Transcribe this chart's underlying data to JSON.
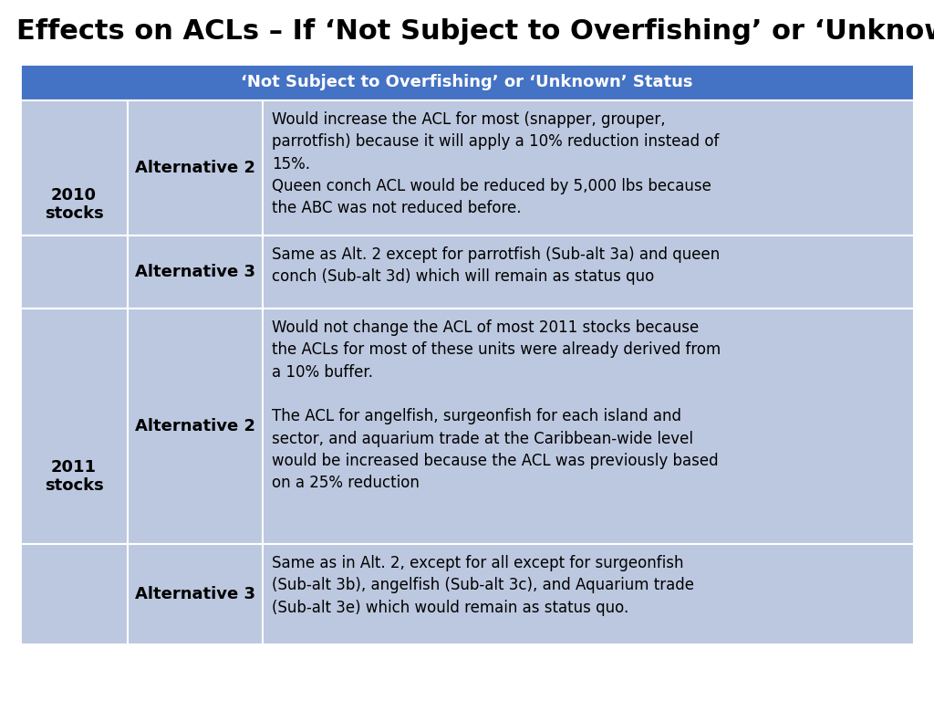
{
  "title": "Effects on ACLs – If ‘Not Subject to Overfishing’ or ‘Unknown’",
  "header": "‘Not Subject to Overfishing’ or ‘Unknown’ Status",
  "header_bg": "#4472C4",
  "header_text_color": "#FFFFFF",
  "table_bg_light": "#BCC8DF",
  "table_bg_dark": "#BCC8DF",
  "rows": [
    {
      "stock": "2010\nstocks",
      "alt": "Alternative 2",
      "desc": "Would increase the ACL for most (snapper, grouper,\nparrotfish) because it will apply a 10% reduction instead of\n15%.\nQueen conch ACL would be reduced by 5,000 lbs because\nthe ABC was not reduced before.",
      "group": 0
    },
    {
      "stock": "",
      "alt": "Alternative 3",
      "desc": "Same as Alt. 2 except for parrotfish (Sub-alt 3a) and queen\nconch (Sub-alt 3d) which will remain as status quo",
      "group": 0
    },
    {
      "stock": "2011\nstocks",
      "alt": "Alternative 2",
      "desc": "Would not change the ACL of most 2011 stocks because\nthe ACLs for most of these units were already derived from\na 10% buffer.\n\nThe ACL for angelfish, surgeonfish for each island and\nsector, and aquarium trade at the Caribbean-wide level\nwould be increased because the ACL was previously based\non a 25% reduction",
      "group": 1
    },
    {
      "stock": "",
      "alt": "Alternative 3",
      "desc": "Same as in Alt. 2, except for all except for surgeonfish\n(Sub-alt 3b), angelfish (Sub-alt 3c), and Aquarium trade\n(Sub-alt 3e) which would remain as status quo.",
      "group": 1
    }
  ],
  "title_fontsize": 22,
  "header_fontsize": 13,
  "cell_fontsize": 12,
  "bold_fontsize": 13,
  "stock_fontsize": 13
}
